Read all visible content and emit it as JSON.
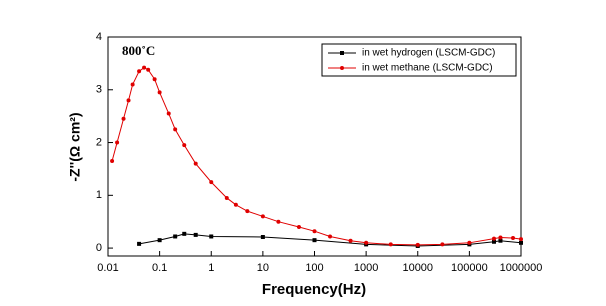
{
  "chart_data": {
    "type": "line",
    "title": "800˚C",
    "x_label": "Frequency(Hz)",
    "y_label": "-Z''(Ω cm²)",
    "xscale": "log",
    "xlim": [
      0.01,
      1000000
    ],
    "xticks": [
      0.01,
      0.1,
      1,
      10,
      100,
      1000,
      10000,
      100000,
      1000000
    ],
    "ylim": [
      -0.15,
      4
    ],
    "yticks": [
      0,
      1,
      2,
      3,
      4
    ],
    "legend": "upper right",
    "series": [
      {
        "name": "in wet hydrogen (LSCM-GDC)",
        "color": "#000000",
        "marker": "square",
        "x": [
          0.04,
          0.1,
          0.2,
          0.3,
          0.5,
          1,
          10,
          100,
          1000,
          10000,
          100000,
          300000,
          400000,
          1000000
        ],
        "values": [
          0.08,
          0.15,
          0.22,
          0.27,
          0.25,
          0.22,
          0.21,
          0.15,
          0.07,
          0.04,
          0.07,
          0.12,
          0.14,
          0.1
        ]
      },
      {
        "name": "in wet methane (LSCM-GDC)",
        "color": "#e00000",
        "marker": "circle",
        "x": [
          0.012,
          0.015,
          0.02,
          0.025,
          0.03,
          0.04,
          0.05,
          0.06,
          0.08,
          0.1,
          0.15,
          0.2,
          0.3,
          0.5,
          1,
          2,
          3,
          5,
          10,
          20,
          50,
          100,
          200,
          500,
          1000,
          3000,
          10000,
          30000,
          100000,
          300000,
          400000,
          700000,
          1000000
        ],
        "values": [
          1.65,
          2.0,
          2.45,
          2.8,
          3.1,
          3.35,
          3.42,
          3.38,
          3.2,
          2.95,
          2.55,
          2.25,
          1.95,
          1.6,
          1.25,
          0.95,
          0.82,
          0.7,
          0.6,
          0.5,
          0.4,
          0.32,
          0.22,
          0.14,
          0.1,
          0.07,
          0.06,
          0.07,
          0.1,
          0.18,
          0.2,
          0.19,
          0.17
        ]
      }
    ]
  }
}
